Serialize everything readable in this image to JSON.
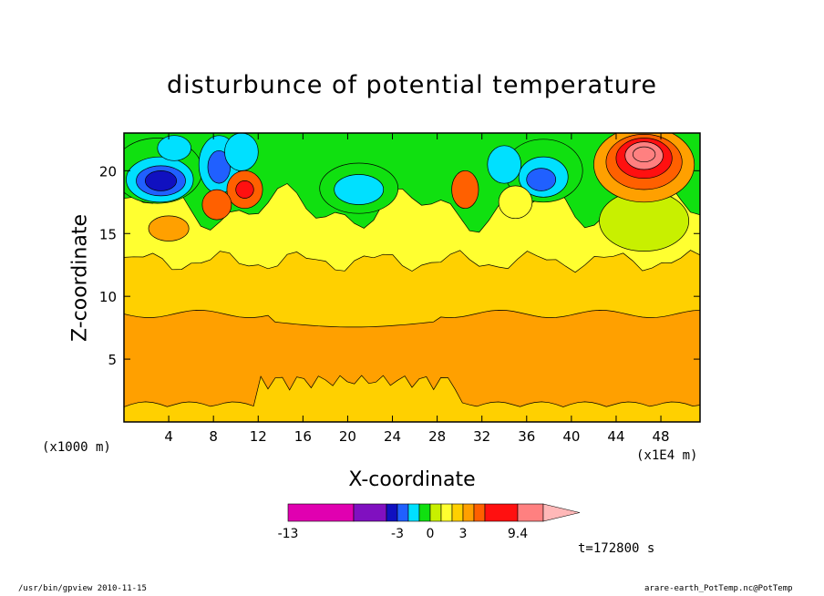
{
  "chart_data": {
    "type": "heatmap",
    "title": "disturbunce of potential temperature",
    "xlabel": "X-coordinate",
    "ylabel": "Z-coordinate",
    "x_unit_left": "(x1000 m)",
    "x_unit_right": "(x1E4 m)",
    "xlim": [
      0,
      51.5
    ],
    "ylim": [
      0,
      23
    ],
    "x_ticks": [
      "4",
      "8",
      "12",
      "16",
      "20",
      "24",
      "28",
      "32",
      "36",
      "40",
      "44",
      "48"
    ],
    "x_tick_values": [
      4,
      8,
      12,
      16,
      20,
      24,
      28,
      32,
      36,
      40,
      44,
      48
    ],
    "y_ticks": [
      "5",
      "10",
      "15",
      "20"
    ],
    "y_tick_values": [
      5,
      10,
      15,
      20
    ],
    "colorbar": {
      "levels": [
        -13,
        -7,
        -4,
        -3,
        -2,
        -1,
        0,
        1,
        2,
        3,
        4,
        7,
        9.4
      ],
      "colors": [
        "#e000b0",
        "#8010c0",
        "#1010c0",
        "#2060ff",
        "#00e0ff",
        "#10e010",
        "#c8f000",
        "#ffff30",
        "#ffd000",
        "#ffa000",
        "#ff6000",
        "#ff1010",
        "#ff8080",
        "#ffb8b8"
      ],
      "tick_labels": [
        "-13",
        "-3",
        "0",
        "3",
        "9.4"
      ],
      "tick_values": [
        -13,
        -3,
        0,
        3,
        9.4
      ]
    },
    "time_label": "t=172800 s",
    "background_value": 1.5,
    "bands": [
      {
        "value": 2.5,
        "z_bottom": 1.2,
        "z_top": 8.6,
        "note": ""
      },
      {
        "value": 1.5,
        "z_bottom": 0,
        "z_top": 12.5,
        "note": ""
      }
    ],
    "blobs": [
      {
        "x": 3,
        "z": 20.0,
        "rx": 4,
        "rz": 2.6,
        "value": -2
      },
      {
        "x": 3.2,
        "z": 19.3,
        "rx": 3,
        "rz": 1.8,
        "value": -3
      },
      {
        "x": 3.3,
        "z": 19.2,
        "rx": 2.2,
        "rz": 1.2,
        "value": -4
      },
      {
        "x": 3.3,
        "z": 19.2,
        "rx": 1.4,
        "rz": 0.8,
        "value": -7
      },
      {
        "x": 4.5,
        "z": 21.8,
        "rx": 1.5,
        "rz": 1.0,
        "value": -3
      },
      {
        "x": 8.5,
        "z": 20.5,
        "rx": 1.8,
        "rz": 2.3,
        "value": -3
      },
      {
        "x": 8.5,
        "z": 20.3,
        "rx": 1.0,
        "rz": 1.3,
        "value": -4
      },
      {
        "x": 10.5,
        "z": 21.5,
        "rx": 1.5,
        "rz": 1.5,
        "value": -3
      },
      {
        "x": 10.8,
        "z": 18.5,
        "rx": 1.6,
        "rz": 1.5,
        "value": 3
      },
      {
        "x": 10.8,
        "z": 18.5,
        "rx": 0.8,
        "rz": 0.7,
        "value": 4
      },
      {
        "x": 8.3,
        "z": 17.3,
        "rx": 1.3,
        "rz": 1.2,
        "value": 3
      },
      {
        "x": 4,
        "z": 15.4,
        "rx": 1.8,
        "rz": 1.0,
        "value": 2.5
      },
      {
        "x": 21,
        "z": 18.6,
        "rx": 3.5,
        "rz": 2.0,
        "value": -2
      },
      {
        "x": 21,
        "z": 18.5,
        "rx": 2.2,
        "rz": 1.2,
        "value": -3
      },
      {
        "x": 30.5,
        "z": 18.5,
        "rx": 1.2,
        "rz": 1.5,
        "value": 3
      },
      {
        "x": 37.5,
        "z": 20.0,
        "rx": 3.5,
        "rz": 2.5,
        "value": -2
      },
      {
        "x": 37.5,
        "z": 19.5,
        "rx": 2.2,
        "rz": 1.6,
        "value": -3
      },
      {
        "x": 37.3,
        "z": 19.3,
        "rx": 1.3,
        "rz": 0.9,
        "value": -4
      },
      {
        "x": 34,
        "z": 20.5,
        "rx": 1.5,
        "rz": 1.5,
        "value": -3
      },
      {
        "x": 35,
        "z": 17.5,
        "rx": 1.5,
        "rz": 1.3,
        "value": 0.5
      },
      {
        "x": 46.5,
        "z": 16.0,
        "rx": 4,
        "rz": 2.4,
        "value": -1
      },
      {
        "x": 46.5,
        "z": 20.5,
        "rx": 4.5,
        "rz": 3.0,
        "value": 2.5
      },
      {
        "x": 46.5,
        "z": 20.7,
        "rx": 3.4,
        "rz": 2.2,
        "value": 3
      },
      {
        "x": 46.5,
        "z": 21.0,
        "rx": 2.5,
        "rz": 1.6,
        "value": 4
      },
      {
        "x": 46.5,
        "z": 21.2,
        "rx": 1.7,
        "rz": 1.1,
        "value": 7
      },
      {
        "x": 46.5,
        "z": 21.3,
        "rx": 1.0,
        "rz": 0.6,
        "value": 9
      }
    ]
  },
  "footer": {
    "left": "/usr/bin/gpview   2010-11-15",
    "right": "arare-earth_PotTemp.nc@PotTemp"
  }
}
